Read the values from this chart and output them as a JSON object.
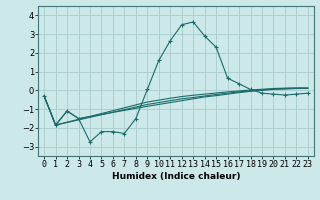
{
  "xlabel": "Humidex (Indice chaleur)",
  "background_color": "#cce8e8",
  "grid_color": "#aacccc",
  "line_color": "#1a6b6b",
  "xlim": [
    -0.5,
    23.5
  ],
  "ylim": [
    -3.5,
    4.5
  ],
  "yticks": [
    -3,
    -2,
    -1,
    0,
    1,
    2,
    3,
    4
  ],
  "x_ticks": [
    0,
    1,
    2,
    3,
    4,
    5,
    6,
    7,
    8,
    9,
    10,
    11,
    12,
    13,
    14,
    15,
    16,
    17,
    18,
    19,
    20,
    21,
    22,
    23
  ],
  "series_main": {
    "x": [
      0,
      1,
      2,
      3,
      4,
      5,
      6,
      7,
      8,
      9,
      10,
      11,
      12,
      13,
      14,
      15,
      16,
      17,
      18,
      19,
      20,
      21,
      22,
      23
    ],
    "y": [
      -0.3,
      -1.85,
      -1.1,
      -1.5,
      -2.75,
      -2.2,
      -2.2,
      -2.3,
      -1.5,
      0.05,
      1.6,
      2.65,
      3.5,
      3.65,
      2.9,
      2.3,
      0.65,
      0.35,
      0.05,
      -0.15,
      -0.2,
      -0.25,
      -0.2,
      -0.15
    ]
  },
  "series_flat": [
    {
      "x": [
        0,
        1,
        2,
        3,
        9,
        10,
        11,
        12,
        13,
        14,
        15,
        16,
        17,
        18,
        19,
        20,
        21,
        22,
        23
      ],
      "y": [
        -0.3,
        -1.85,
        -1.1,
        -1.5,
        -0.85,
        -0.75,
        -0.65,
        -0.55,
        -0.45,
        -0.35,
        -0.28,
        -0.2,
        -0.12,
        -0.05,
        0.0,
        0.05,
        0.07,
        0.1,
        0.1
      ]
    },
    {
      "x": [
        0,
        1,
        9,
        10,
        11,
        12,
        13,
        14,
        15,
        16,
        17,
        18,
        19,
        20,
        21,
        22,
        23
      ],
      "y": [
        -0.3,
        -1.85,
        -0.75,
        -0.65,
        -0.55,
        -0.45,
        -0.38,
        -0.3,
        -0.22,
        -0.15,
        -0.08,
        -0.02,
        0.03,
        0.07,
        0.1,
        0.12,
        0.12
      ]
    },
    {
      "x": [
        0,
        1,
        9,
        10,
        11,
        12,
        13,
        14,
        15,
        16,
        17,
        18,
        19,
        20,
        21,
        22,
        23
      ],
      "y": [
        -0.3,
        -1.85,
        -0.62,
        -0.52,
        -0.42,
        -0.33,
        -0.26,
        -0.2,
        -0.14,
        -0.08,
        -0.03,
        0.02,
        0.06,
        0.1,
        0.12,
        0.13,
        0.13
      ]
    }
  ]
}
